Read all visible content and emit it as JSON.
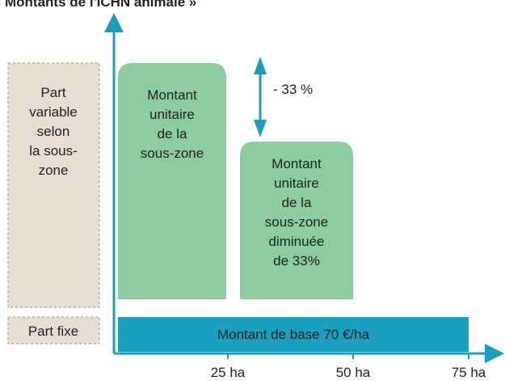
{
  "title": "Montants de l'ICHN animale »",
  "left_boxes": [
    {
      "lines": [
        "Part",
        "variable",
        "selon",
        "la sous-",
        "zone"
      ]
    },
    {
      "lines": [
        "Part fixe"
      ]
    }
  ],
  "blocks": [
    {
      "lines": [
        "Montant",
        "unitaire",
        "de la",
        "sous-zone"
      ]
    },
    {
      "lines": [
        "Montant",
        "unitaire",
        "de la",
        "sous-zone",
        "diminuée",
        "de 33%"
      ]
    }
  ],
  "base_bar": "Montant de base 70 €/ha",
  "reduction_label": "- 33 %",
  "x_labels": [
    "25 ha",
    "50 ha",
    "75 ha"
  ]
}
